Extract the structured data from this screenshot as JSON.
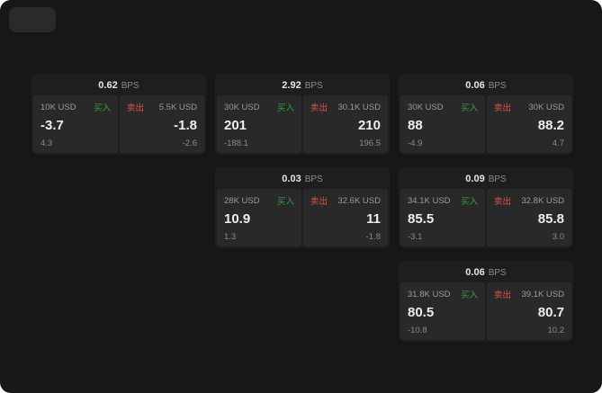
{
  "labels": {
    "bps": "BPS",
    "buy": "买入",
    "sell": "卖出"
  },
  "colors": {
    "background": "#171717",
    "card": "#1e1e1e",
    "panel": "#292929",
    "buy": "#2ea043",
    "sell": "#d9544f"
  },
  "cards": [
    {
      "spread": "0.62",
      "bid_size": "10K USD",
      "bid_price": "-3.7",
      "bid_delta": "4.3",
      "ask_size": "5.5K USD",
      "ask_price": "-1.8",
      "ask_delta": "-2.6"
    },
    {
      "spread": "2.92",
      "bid_size": "30K USD",
      "bid_price": "201",
      "bid_delta": "-188.1",
      "ask_size": "30.1K USD",
      "ask_price": "210",
      "ask_delta": "196.5"
    },
    {
      "spread": "0.06",
      "bid_size": "30K USD",
      "bid_price": "88",
      "bid_delta": "-4.9",
      "ask_size": "30K USD",
      "ask_price": "88.2",
      "ask_delta": "4.7"
    },
    {
      "spread": "0.03",
      "bid_size": "28K USD",
      "bid_price": "10.9",
      "bid_delta": "1.3",
      "ask_size": "32.6K USD",
      "ask_price": "11",
      "ask_delta": "-1.8"
    },
    {
      "spread": "0.09",
      "bid_size": "34.1K USD",
      "bid_price": "85.5",
      "bid_delta": "-3.1",
      "ask_size": "32.8K USD",
      "ask_price": "85.8",
      "ask_delta": "3.0"
    },
    {
      "spread": "0.06",
      "bid_size": "31.8K USD",
      "bid_price": "80.5",
      "bid_delta": "-10.8",
      "ask_size": "39.1K USD",
      "ask_price": "80.7",
      "ask_delta": "10.2"
    }
  ]
}
